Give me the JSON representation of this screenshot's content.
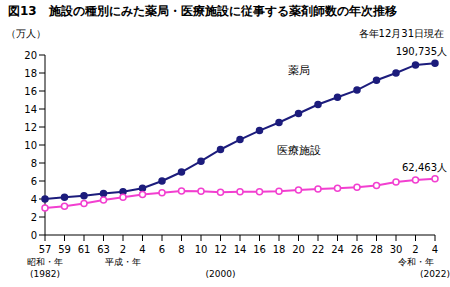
{
  "chart_data": {
    "type": "line",
    "title": "図13　施設の種別にみた薬局・医療施設に従事する薬剤師数の年次推移",
    "subtitle": "各年12月31日現在",
    "y_label": "（万人）",
    "categories": [
      "57",
      "59",
      "61",
      "63",
      "2",
      "4",
      "6",
      "8",
      "10",
      "12",
      "14",
      "16",
      "18",
      "20",
      "22",
      "24",
      "26",
      "28",
      "30",
      "2",
      "4"
    ],
    "x_era": [
      "昭和・年",
      null,
      null,
      null,
      "平成・年",
      null,
      null,
      null,
      null,
      null,
      null,
      null,
      null,
      null,
      null,
      null,
      null,
      null,
      null,
      "令和・年",
      null
    ],
    "x_year": [
      "(1982)",
      null,
      null,
      null,
      null,
      null,
      null,
      null,
      null,
      "(2000)",
      null,
      null,
      null,
      null,
      null,
      null,
      null,
      null,
      null,
      null,
      "(2022)"
    ],
    "series": [
      {
        "name": "薬局",
        "color": "#1c1c7c",
        "marker": "filled_circle",
        "line_style": "solid",
        "values": [
          4.0,
          4.2,
          4.35,
          4.6,
          4.8,
          5.2,
          6.0,
          7.0,
          8.2,
          9.5,
          10.6,
          11.6,
          12.5,
          13.5,
          14.5,
          15.3,
          16.1,
          17.2,
          18.0,
          18.9,
          19.0735
        ],
        "value_labels": [
          null,
          null,
          null,
          null,
          null,
          null,
          null,
          null,
          null,
          null,
          null,
          null,
          null,
          null,
          null,
          null,
          null,
          null,
          null,
          null,
          "190,735人"
        ]
      },
      {
        "name": "医療施設",
        "color": "#f23fd0",
        "marker": "open_circle",
        "line_style": "solid",
        "values": [
          3.0,
          3.2,
          3.5,
          3.9,
          4.2,
          4.5,
          4.7,
          4.9,
          4.85,
          4.75,
          4.8,
          4.8,
          4.85,
          5.0,
          5.1,
          5.2,
          5.3,
          5.5,
          5.9,
          6.1,
          6.2463
        ],
        "value_labels": [
          null,
          null,
          null,
          null,
          null,
          null,
          null,
          null,
          null,
          null,
          null,
          null,
          null,
          null,
          null,
          null,
          null,
          null,
          null,
          null,
          "62,463人"
        ]
      }
    ],
    "ylim": [
      0,
      20
    ],
    "yticks": [
      0,
      2,
      4,
      6,
      8,
      10,
      12,
      14,
      16,
      18,
      20
    ],
    "grid": false,
    "legend": false
  }
}
